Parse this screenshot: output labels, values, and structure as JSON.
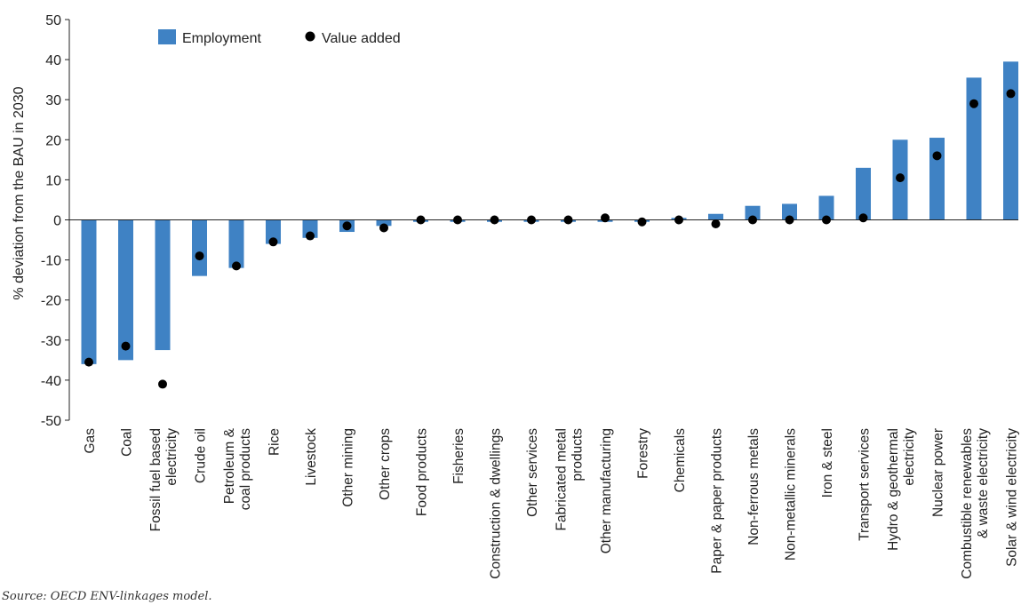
{
  "source": "Source: OECD ENV-linkages model.",
  "colors": {
    "bar": "#3f82c4",
    "dot": "#000000",
    "axis": "#222222",
    "text": "#222222"
  },
  "chart_data": {
    "type": "bar",
    "title": "",
    "xlabel": "",
    "ylabel": "% deviation from the BAU in 2030",
    "ylim": [
      -50,
      50
    ],
    "yticks": [
      -50,
      -40,
      -30,
      -20,
      -10,
      0,
      10,
      20,
      30,
      40,
      50
    ],
    "grid": false,
    "legend_position": "top-left",
    "categories": [
      "Gas",
      "Coal",
      "Fossil fuel based\nelectricity",
      "Crude oil",
      "Petroleum &\ncoal products",
      "Rice",
      "Livestock",
      "Other mining",
      "Other crops",
      "Food products",
      "Fisheries",
      "Construction & dwellings",
      "Other services",
      "Fabricated metal\nproducts",
      "Other manufacturing",
      "Forestry",
      "Chemicals",
      "Paper & paper products",
      "Non-ferrous metals",
      "Non-metallic minerals",
      "Iron & steel",
      "Transport services",
      "Hydro & geothermal\nelectricity",
      "Nuclear power",
      "Combustible renewables\n& waste electricity",
      "Solar & wind electricity"
    ],
    "series": [
      {
        "name": "Employment",
        "kind": "bar",
        "values": [
          -36,
          -35,
          -32.5,
          -14,
          -12,
          -6,
          -4.5,
          -3,
          -1.5,
          -0.5,
          -0.5,
          -0.5,
          -0.5,
          -0.5,
          -0.5,
          -0.5,
          0.5,
          1.5,
          3.5,
          4,
          6,
          13,
          20,
          20.5,
          35.5,
          39.5
        ]
      },
      {
        "name": "Value added",
        "kind": "dot",
        "values": [
          -35.5,
          -31.5,
          -41,
          -9,
          -11.5,
          -5.5,
          -4,
          -1.5,
          -2,
          0,
          0,
          0,
          0,
          0,
          0.5,
          -0.5,
          0,
          -1,
          0,
          0,
          0,
          0.5,
          10.5,
          16,
          29,
          31.5
        ]
      }
    ]
  }
}
